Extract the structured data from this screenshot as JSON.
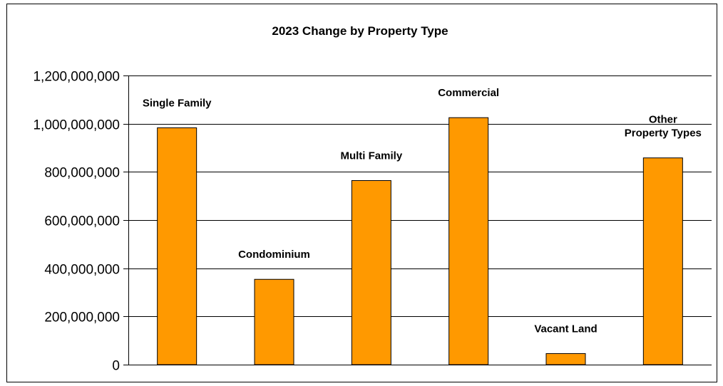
{
  "chart_data": {
    "type": "bar",
    "title": "2023 Change by Property Type",
    "xlabel": "",
    "ylabel": "",
    "categories": [
      "Single Family",
      "Condominium",
      "Multi Family",
      "Commercial",
      "Vacant Land",
      "Other Property Types"
    ],
    "category_label_lines": [
      [
        "Single Family"
      ],
      [
        "Condominium"
      ],
      [
        "Multi Family"
      ],
      [
        "Commercial"
      ],
      [
        "Vacant Land"
      ],
      [
        "Other",
        "Property Types"
      ]
    ],
    "values": [
      983000000,
      354000000,
      764000000,
      1025000000,
      46000000,
      858000000
    ],
    "ylim": [
      0,
      1200000000
    ],
    "yticks": [
      0,
      200000000,
      400000000,
      600000000,
      800000000,
      1000000000,
      1200000000
    ],
    "ytick_labels": [
      "0",
      "200,000,000",
      "400,000,000",
      "600,000,000",
      "800,000,000",
      "1,000,000,000",
      "1,200,000,000"
    ],
    "grid": true,
    "legend": "none",
    "colors": {
      "bar_fill": "#FF9900",
      "bar_stroke": "#000000",
      "gridline": "#000000",
      "axis": "#000000",
      "text": "#000000"
    }
  }
}
